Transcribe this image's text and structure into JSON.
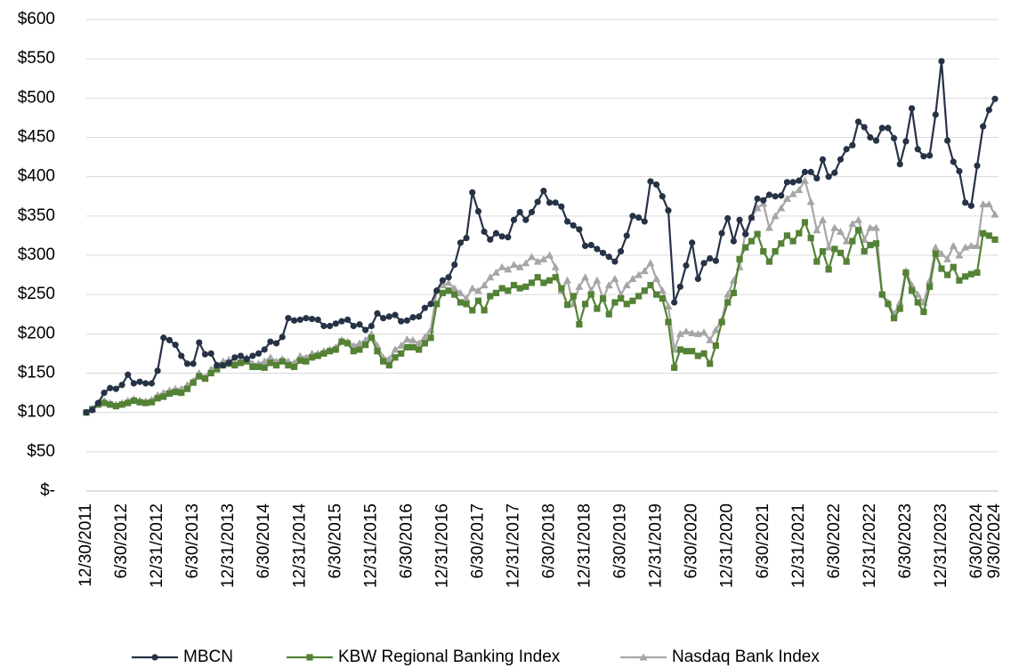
{
  "chart_data": {
    "type": "line",
    "categories": [
      "12/30/2011",
      null,
      null,
      null,
      null,
      null,
      "6/30/2012",
      null,
      null,
      null,
      null,
      null,
      "12/31/2012",
      null,
      null,
      null,
      null,
      null,
      "6/30/2013",
      null,
      null,
      null,
      null,
      null,
      "12/31/2013",
      null,
      null,
      null,
      null,
      null,
      "6/30/2014",
      null,
      null,
      null,
      null,
      null,
      "12/31/2014",
      null,
      null,
      null,
      null,
      null,
      "6/30/2015",
      null,
      null,
      null,
      null,
      null,
      "12/31/2015",
      null,
      null,
      null,
      null,
      null,
      "6/30/2016",
      null,
      null,
      null,
      null,
      null,
      "12/31/2016",
      null,
      null,
      null,
      null,
      null,
      "6/30/2017",
      null,
      null,
      null,
      null,
      null,
      "12/31/2017",
      null,
      null,
      null,
      null,
      null,
      "6/30/2018",
      null,
      null,
      null,
      null,
      null,
      "12/31/2018",
      null,
      null,
      null,
      null,
      null,
      "6/30/2019",
      null,
      null,
      null,
      null,
      null,
      "12/31/2019",
      null,
      null,
      null,
      null,
      null,
      "6/30/2020",
      null,
      null,
      null,
      null,
      null,
      "12/31/2020",
      null,
      null,
      null,
      null,
      null,
      "6/30/2021",
      null,
      null,
      null,
      null,
      null,
      "12/31/2021",
      null,
      null,
      null,
      null,
      null,
      "6/30/2022",
      null,
      null,
      null,
      null,
      null,
      "12/31/2022",
      null,
      null,
      null,
      null,
      null,
      "6/30/2023",
      null,
      null,
      null,
      null,
      null,
      "12/31/2023",
      null,
      null,
      null,
      null,
      null,
      "6/30/2024",
      null,
      null,
      "9/30/2024"
    ],
    "series": [
      {
        "name": "MBCN",
        "color": "#263246",
        "marker": "circle",
        "values": [
          100,
          103,
          112,
          125,
          131,
          130,
          135,
          148,
          137,
          139,
          137,
          137,
          153,
          195,
          192,
          186,
          172,
          162,
          162,
          189,
          174,
          175,
          160,
          160,
          163,
          170,
          172,
          168,
          172,
          175,
          180,
          190,
          188,
          196,
          220,
          217,
          218,
          220,
          219,
          218,
          210,
          210,
          213,
          216,
          218,
          210,
          212,
          205,
          210,
          226,
          220,
          222,
          224,
          216,
          217,
          221,
          222,
          233,
          238,
          255,
          268,
          272,
          288,
          316,
          322,
          380,
          356,
          330,
          320,
          328,
          324,
          323,
          345,
          355,
          345,
          355,
          368,
          382,
          367,
          367,
          362,
          343,
          338,
          333,
          312,
          313,
          308,
          303,
          298,
          292,
          305,
          325,
          350,
          348,
          343,
          394,
          390,
          375,
          357,
          240,
          260,
          287,
          316,
          270,
          290,
          296,
          293,
          328,
          347,
          318,
          345,
          327,
          348,
          372,
          370,
          377,
          375,
          376,
          393,
          393,
          395,
          406,
          406,
          398,
          422,
          400,
          405,
          422,
          435,
          440,
          470,
          463,
          450,
          446,
          462,
          462,
          449,
          416,
          445,
          487,
          435,
          426,
          427,
          479,
          547,
          446,
          419,
          407,
          367,
          363,
          414,
          464,
          485,
          499
        ]
      },
      {
        "name": "KBW Regional Banking Index",
        "color": "#548235",
        "marker": "square",
        "values": [
          100,
          104,
          110,
          112,
          110,
          108,
          110,
          112,
          115,
          113,
          112,
          113,
          118,
          120,
          124,
          126,
          125,
          130,
          138,
          146,
          143,
          150,
          155,
          160,
          162,
          160,
          163,
          165,
          158,
          158,
          157,
          163,
          160,
          165,
          160,
          158,
          166,
          165,
          170,
          172,
          175,
          178,
          180,
          190,
          188,
          178,
          180,
          186,
          195,
          178,
          165,
          160,
          170,
          175,
          183,
          183,
          180,
          188,
          195,
          238,
          252,
          255,
          250,
          240,
          238,
          230,
          242,
          230,
          248,
          252,
          258,
          255,
          262,
          258,
          260,
          265,
          272,
          265,
          268,
          272,
          258,
          237,
          248,
          212,
          238,
          250,
          232,
          245,
          225,
          240,
          245,
          238,
          242,
          248,
          255,
          262,
          250,
          245,
          215,
          157,
          180,
          178,
          178,
          172,
          175,
          162,
          185,
          215,
          240,
          252,
          295,
          310,
          318,
          327,
          305,
          292,
          305,
          315,
          325,
          318,
          328,
          342,
          322,
          292,
          305,
          282,
          308,
          303,
          292,
          318,
          332,
          305,
          313,
          315,
          250,
          238,
          220,
          232,
          278,
          255,
          240,
          228,
          260,
          302,
          283,
          275,
          285,
          268,
          273,
          276,
          278,
          328,
          325,
          320
        ]
      },
      {
        "name": "Nasdaq Bank Index",
        "color": "#a6a6a6",
        "marker": "triangle",
        "values": [
          100,
          105,
          112,
          115,
          112,
          110,
          112,
          115,
          117,
          115,
          114,
          116,
          122,
          125,
          128,
          130,
          130,
          135,
          140,
          150,
          145,
          155,
          160,
          165,
          167,
          163,
          167,
          170,
          162,
          162,
          165,
          170,
          165,
          168,
          165,
          163,
          172,
          170,
          175,
          175,
          178,
          180,
          183,
          192,
          190,
          185,
          188,
          192,
          200,
          185,
          170,
          168,
          180,
          185,
          193,
          192,
          188,
          196,
          205,
          255,
          262,
          265,
          258,
          252,
          245,
          258,
          255,
          262,
          272,
          278,
          285,
          282,
          288,
          285,
          290,
          298,
          292,
          295,
          300,
          285,
          255,
          268,
          238,
          260,
          272,
          255,
          268,
          245,
          262,
          270,
          250,
          262,
          270,
          275,
          280,
          290,
          270,
          255,
          235,
          180,
          200,
          203,
          201,
          200,
          202,
          192,
          205,
          218,
          250,
          268,
          285,
          330,
          348,
          360,
          366,
          335,
          350,
          360,
          372,
          378,
          383,
          395,
          368,
          332,
          345,
          310,
          335,
          330,
          318,
          340,
          345,
          320,
          335,
          335,
          252,
          240,
          225,
          240,
          280,
          262,
          250,
          240,
          268,
          310,
          302,
          295,
          312,
          300,
          310,
          312,
          312,
          365,
          365,
          352
        ]
      }
    ],
    "ylim": [
      0,
      600
    ],
    "yticks": [
      {
        "value": 0,
        "label": "$-"
      },
      {
        "value": 50,
        "label": "$50"
      },
      {
        "value": 100,
        "label": "$100"
      },
      {
        "value": 150,
        "label": "$150"
      },
      {
        "value": 200,
        "label": "$200"
      },
      {
        "value": 250,
        "label": "$250"
      },
      {
        "value": 300,
        "label": "$300"
      },
      {
        "value": 350,
        "label": "$350"
      },
      {
        "value": 400,
        "label": "$400"
      },
      {
        "value": 450,
        "label": "$450"
      },
      {
        "value": 500,
        "label": "$500"
      },
      {
        "value": 550,
        "label": "$550"
      },
      {
        "value": 600,
        "label": "$600"
      }
    ],
    "grid": true,
    "legend": "bottom"
  }
}
